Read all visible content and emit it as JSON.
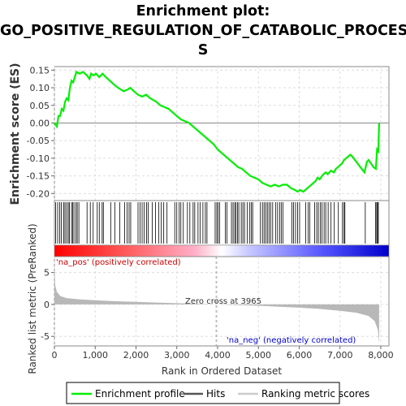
{
  "title_line1": "Enrichment plot:",
  "title_line2": "GO_POSITIVE_REGULATION_OF_CATABOLIC_PROCES",
  "title_line3": "S",
  "colors": {
    "enrichment": "#00ee00",
    "hits": "#000000",
    "metric_fill": "#b8b8b8",
    "grid": "#dddddd",
    "zero_line": "#888888",
    "pos_label": "#cc0000",
    "neg_label": "#0000cc",
    "heat_pos": "#ff0000",
    "heat_neg": "#0000ff"
  },
  "chart_data": {
    "type": "line",
    "x_label": "Rank in Ordered Dataset",
    "x_ticks": [
      "0",
      "1,000",
      "2,000",
      "3,000",
      "4,000",
      "5,000",
      "6,000",
      "7,000",
      "8,000"
    ],
    "x_tick_values": [
      0,
      1000,
      2000,
      3000,
      4000,
      5000,
      6000,
      7000,
      8000
    ],
    "xlim": [
      0,
      8200
    ],
    "es_panel": {
      "ylabel": "Enrichment score (ES)",
      "ylim": [
        -0.22,
        0.16
      ],
      "y_ticks": [
        "0.15",
        "0.10",
        "0.05",
        "0.00",
        "-0.05",
        "-0.10",
        "-0.15",
        "-0.20"
      ],
      "y_tick_values": [
        0.15,
        0.1,
        0.05,
        0.0,
        -0.05,
        -0.1,
        -0.15,
        -0.2
      ],
      "series_name": "Enrichment profile",
      "points": [
        [
          0,
          0.0
        ],
        [
          60,
          -0.01
        ],
        [
          100,
          0.02
        ],
        [
          140,
          0.02
        ],
        [
          180,
          0.04
        ],
        [
          220,
          0.035
        ],
        [
          260,
          0.06
        ],
        [
          300,
          0.07
        ],
        [
          340,
          0.065
        ],
        [
          380,
          0.1
        ],
        [
          420,
          0.12
        ],
        [
          460,
          0.115
        ],
        [
          500,
          0.13
        ],
        [
          540,
          0.145
        ],
        [
          620,
          0.14
        ],
        [
          700,
          0.145
        ],
        [
          800,
          0.135
        ],
        [
          860,
          0.125
        ],
        [
          900,
          0.14
        ],
        [
          960,
          0.135
        ],
        [
          1020,
          0.14
        ],
        [
          1100,
          0.13
        ],
        [
          1180,
          0.14
        ],
        [
          1260,
          0.13
        ],
        [
          1360,
          0.12
        ],
        [
          1450,
          0.11
        ],
        [
          1560,
          0.1
        ],
        [
          1700,
          0.09
        ],
        [
          1800,
          0.095
        ],
        [
          1860,
          0.1
        ],
        [
          1950,
          0.09
        ],
        [
          2050,
          0.08
        ],
        [
          2150,
          0.075
        ],
        [
          2250,
          0.08
        ],
        [
          2350,
          0.07
        ],
        [
          2500,
          0.06
        ],
        [
          2600,
          0.05
        ],
        [
          2700,
          0.045
        ],
        [
          2800,
          0.04
        ],
        [
          2900,
          0.03
        ],
        [
          3000,
          0.02
        ],
        [
          3100,
          0.01
        ],
        [
          3200,
          0.005
        ],
        [
          3300,
          0.0
        ],
        [
          3400,
          -0.01
        ],
        [
          3500,
          -0.02
        ],
        [
          3600,
          -0.03
        ],
        [
          3700,
          -0.04
        ],
        [
          3800,
          -0.05
        ],
        [
          3900,
          -0.06
        ],
        [
          4000,
          -0.075
        ],
        [
          4100,
          -0.085
        ],
        [
          4200,
          -0.095
        ],
        [
          4300,
          -0.105
        ],
        [
          4400,
          -0.115
        ],
        [
          4500,
          -0.125
        ],
        [
          4600,
          -0.13
        ],
        [
          4700,
          -0.14
        ],
        [
          4800,
          -0.15
        ],
        [
          4900,
          -0.155
        ],
        [
          5000,
          -0.16
        ],
        [
          5100,
          -0.17
        ],
        [
          5200,
          -0.175
        ],
        [
          5300,
          -0.18
        ],
        [
          5400,
          -0.175
        ],
        [
          5500,
          -0.18
        ],
        [
          5600,
          -0.175
        ],
        [
          5700,
          -0.175
        ],
        [
          5800,
          -0.185
        ],
        [
          5900,
          -0.19
        ],
        [
          5960,
          -0.195
        ],
        [
          6020,
          -0.19
        ],
        [
          6100,
          -0.195
        ],
        [
          6200,
          -0.185
        ],
        [
          6300,
          -0.175
        ],
        [
          6400,
          -0.165
        ],
        [
          6450,
          -0.155
        ],
        [
          6500,
          -0.16
        ],
        [
          6560,
          -0.15
        ],
        [
          6600,
          -0.145
        ],
        [
          6650,
          -0.14
        ],
        [
          6700,
          -0.145
        ],
        [
          6780,
          -0.135
        ],
        [
          6850,
          -0.14
        ],
        [
          6900,
          -0.13
        ],
        [
          6950,
          -0.125
        ],
        [
          7000,
          -0.12
        ],
        [
          7050,
          -0.115
        ],
        [
          7100,
          -0.105
        ],
        [
          7150,
          -0.1
        ],
        [
          7200,
          -0.095
        ],
        [
          7250,
          -0.09
        ],
        [
          7300,
          -0.095
        ],
        [
          7400,
          -0.11
        ],
        [
          7500,
          -0.125
        ],
        [
          7600,
          -0.14
        ],
        [
          7660,
          -0.11
        ],
        [
          7700,
          -0.105
        ],
        [
          7760,
          -0.115
        ],
        [
          7820,
          -0.125
        ],
        [
          7880,
          -0.13
        ],
        [
          7910,
          -0.075
        ],
        [
          7940,
          -0.08
        ],
        [
          7960,
          0.0
        ]
      ]
    },
    "hits": [
      30,
      80,
      130,
      170,
      230,
      260,
      300,
      340,
      370,
      420,
      450,
      480,
      530,
      560,
      600,
      800,
      880,
      950,
      1050,
      1100,
      1170,
      1200,
      1380,
      1480,
      1600,
      1720,
      1780,
      1830,
      1870,
      2050,
      2100,
      2150,
      2200,
      2260,
      2300,
      2400,
      2480,
      2560,
      2620,
      2680,
      2760,
      2950,
      3000,
      3060,
      3100,
      3160,
      3260,
      3320,
      3400,
      3440,
      3520,
      3570,
      3640,
      3700,
      3740,
      3940,
      3980,
      4010,
      4050,
      4190,
      4230,
      4340,
      4380,
      4420,
      4450,
      4490,
      4520,
      4580,
      4620,
      4660,
      4730,
      4790,
      4830,
      4860,
      5050,
      5100,
      5140,
      5180,
      5220,
      5260,
      5300,
      5350,
      5420,
      5470,
      5520,
      5560,
      5600,
      5820,
      5860,
      5910,
      5960,
      6010,
      6160,
      6220,
      6260,
      6380,
      6430,
      6470,
      6520,
      6560,
      6610,
      6650,
      6710,
      6780,
      6860,
      6960,
      7060,
      7100,
      7120,
      7620,
      7870,
      7900,
      7920,
      7940
    ],
    "hits_label": "Hits",
    "metric_panel": {
      "ylabel": "Ranked list metric (PreRanked)",
      "ylim": [
        -6.5,
        7.5
      ],
      "y_ticks": [
        "5",
        "0",
        "-5"
      ],
      "y_tick_values": [
        5,
        0,
        -5
      ],
      "series_name": "Ranking metric scores",
      "points": [
        [
          0,
          6.2
        ],
        [
          20,
          3.0
        ],
        [
          60,
          2.0
        ],
        [
          150,
          1.3
        ],
        [
          300,
          1.0
        ],
        [
          600,
          0.8
        ],
        [
          1000,
          0.65
        ],
        [
          1500,
          0.5
        ],
        [
          2000,
          0.4
        ],
        [
          2500,
          0.3
        ],
        [
          3000,
          0.2
        ],
        [
          3500,
          0.1
        ],
        [
          3965,
          0.0
        ],
        [
          4500,
          -0.1
        ],
        [
          5000,
          -0.2
        ],
        [
          5500,
          -0.35
        ],
        [
          6000,
          -0.5
        ],
        [
          6500,
          -0.7
        ],
        [
          7000,
          -1.0
        ],
        [
          7400,
          -1.3
        ],
        [
          7700,
          -1.8
        ],
        [
          7850,
          -2.6
        ],
        [
          7930,
          -4.0
        ],
        [
          7960,
          -6.2
        ]
      ],
      "zero_cross_label": "Zero cross at 3965",
      "zero_cross": 3965,
      "pos_label": "'na_pos' (positively correlated)",
      "neg_label": "'na_neg' (negatively correlated)"
    },
    "legend": [
      "Enrichment profile",
      "Hits",
      "Ranking metric scores"
    ],
    "legend_position": "bottom"
  }
}
